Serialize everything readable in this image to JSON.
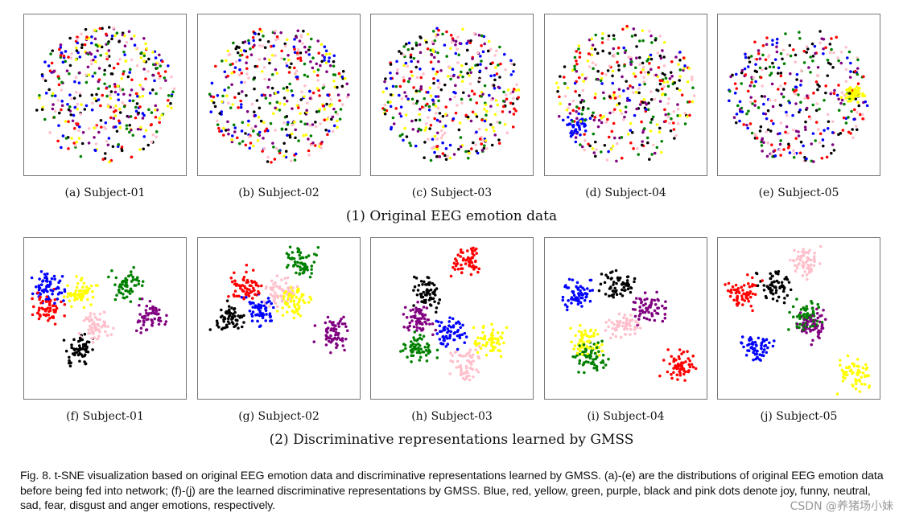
{
  "figure": {
    "rows": [
      {
        "title": "(1) Original EEG emotion data",
        "panels": [
          {
            "label": "(a) Subject-01"
          },
          {
            "label": "(b) Subject-02"
          },
          {
            "label": "(c) Subject-03"
          },
          {
            "label": "(d) Subject-04"
          },
          {
            "label": "(e) Subject-05"
          }
        ]
      },
      {
        "title": "(2) Discriminative representations learned by GMSS",
        "panels": [
          {
            "label": "(f) Subject-01"
          },
          {
            "label": "(g) Subject-02"
          },
          {
            "label": "(h) Subject-03"
          },
          {
            "label": "(i) Subject-04"
          },
          {
            "label": "(j) Subject-05"
          }
        ]
      }
    ],
    "emotion_colors": [
      {
        "emotion": "joy",
        "color": "#0000ff"
      },
      {
        "emotion": "funny",
        "color": "#ff0000"
      },
      {
        "emotion": "neutral",
        "color": "#ffff00"
      },
      {
        "emotion": "sad",
        "color": "#008000"
      },
      {
        "emotion": "fear",
        "color": "#800080"
      },
      {
        "emotion": "disgust",
        "color": "#000000"
      },
      {
        "emotion": "anger",
        "color": "#ffc0cb"
      }
    ],
    "caption": "Fig. 8.  t-SNE visualization based on original EEG emotion data and discriminative representations learned by GMSS. (a)-(e) are the distributions of original EEG emotion data before being fed into network; (f)-(j) are the learned discriminative representations by GMSS. Blue, red, yellow, green, purple, black and pink dots denote joy, funny, neutral, sad, fear, disgust and anger emotions, respectively."
  },
  "watermark": "CSDN @养猪场小妹"
}
